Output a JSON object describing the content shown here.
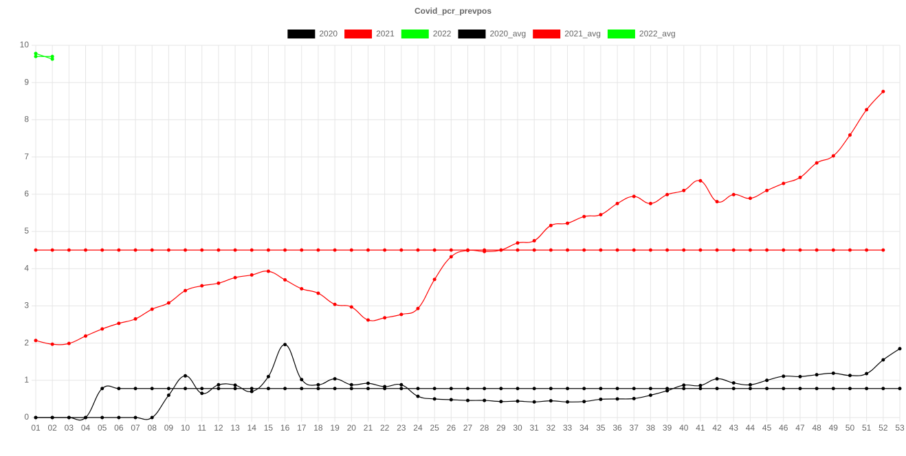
{
  "chart_data": {
    "type": "line",
    "title": "Covid_pcr_prevpos",
    "categories": [
      "01",
      "02",
      "03",
      "04",
      "05",
      "06",
      "07",
      "08",
      "09",
      "10",
      "11",
      "12",
      "13",
      "14",
      "15",
      "16",
      "17",
      "18",
      "19",
      "20",
      "21",
      "22",
      "23",
      "24",
      "25",
      "26",
      "27",
      "28",
      "29",
      "30",
      "31",
      "32",
      "33",
      "34",
      "35",
      "36",
      "37",
      "38",
      "39",
      "40",
      "41",
      "42",
      "43",
      "44",
      "45",
      "46",
      "47",
      "48",
      "49",
      "50",
      "51",
      "52",
      "53"
    ],
    "series": [
      {
        "name": "2020",
        "color": "#000000",
        "values": [
          0,
          0,
          0,
          0,
          0,
          0,
          0,
          0,
          0.6,
          1.12,
          0.65,
          0.88,
          0.87,
          0.7,
          1.1,
          1.96,
          1.02,
          0.88,
          1.04,
          0.88,
          0.92,
          0.83,
          0.88,
          0.57,
          0.5,
          0.48,
          0.46,
          0.46,
          0.43,
          0.44,
          0.42,
          0.45,
          0.42,
          0.43,
          0.49,
          0.5,
          0.51,
          0.6,
          0.72,
          0.87,
          0.86,
          1.04,
          0.93,
          0.88,
          1.0,
          1.11,
          1.1,
          1.15,
          1.19,
          1.13,
          1.18,
          1.55,
          1.85
        ]
      },
      {
        "name": "2021",
        "color": "#ff0000",
        "values": [
          2.07,
          1.97,
          1.99,
          2.19,
          2.38,
          2.53,
          2.65,
          2.91,
          3.08,
          3.41,
          3.54,
          3.61,
          3.76,
          3.83,
          3.93,
          3.7,
          3.46,
          3.34,
          3.04,
          2.97,
          2.62,
          2.68,
          2.77,
          2.93,
          3.71,
          4.32,
          4.49,
          4.46,
          4.5,
          4.69,
          4.75,
          5.16,
          5.22,
          5.4,
          5.45,
          5.75,
          5.94,
          5.75,
          5.99,
          6.1,
          6.36,
          5.8,
          5.99,
          5.89,
          6.1,
          6.29,
          6.45,
          6.84,
          7.03,
          7.59,
          8.27,
          8.76,
          null
        ]
      },
      {
        "name": "2022",
        "color": "#00ff00",
        "values": [
          9.78,
          9.63,
          null,
          null,
          null,
          null,
          null,
          null,
          null,
          null,
          null,
          null,
          null,
          null,
          null,
          null,
          null,
          null,
          null,
          null,
          null,
          null,
          null,
          null,
          null,
          null,
          null,
          null,
          null,
          null,
          null,
          null,
          null,
          null,
          null,
          null,
          null,
          null,
          null,
          null,
          null,
          null,
          null,
          null,
          null,
          null,
          null,
          null,
          null,
          null,
          null,
          null,
          null
        ]
      },
      {
        "name": "2020_avg",
        "color": "#000000",
        "values": [
          0,
          0,
          0,
          0,
          0.78,
          0.78,
          0.78,
          0.78,
          0.78,
          0.78,
          0.78,
          0.78,
          0.78,
          0.78,
          0.78,
          0.78,
          0.78,
          0.78,
          0.78,
          0.78,
          0.78,
          0.78,
          0.78,
          0.78,
          0.78,
          0.78,
          0.78,
          0.78,
          0.78,
          0.78,
          0.78,
          0.78,
          0.78,
          0.78,
          0.78,
          0.78,
          0.78,
          0.78,
          0.78,
          0.78,
          0.78,
          0.78,
          0.78,
          0.78,
          0.78,
          0.78,
          0.78,
          0.78,
          0.78,
          0.78,
          0.78,
          0.78,
          0.78
        ]
      },
      {
        "name": "2021_avg",
        "color": "#ff0000",
        "values": [
          4.5,
          4.5,
          4.5,
          4.5,
          4.5,
          4.5,
          4.5,
          4.5,
          4.5,
          4.5,
          4.5,
          4.5,
          4.5,
          4.5,
          4.5,
          4.5,
          4.5,
          4.5,
          4.5,
          4.5,
          4.5,
          4.5,
          4.5,
          4.5,
          4.5,
          4.5,
          4.5,
          4.5,
          4.5,
          4.5,
          4.5,
          4.5,
          4.5,
          4.5,
          4.5,
          4.5,
          4.5,
          4.5,
          4.5,
          4.5,
          4.5,
          4.5,
          4.5,
          4.5,
          4.5,
          4.5,
          4.5,
          4.5,
          4.5,
          4.5,
          4.5,
          4.5,
          null
        ]
      },
      {
        "name": "2022_avg",
        "color": "#00ff00",
        "values": [
          9.7,
          9.7,
          null,
          null,
          null,
          null,
          null,
          null,
          null,
          null,
          null,
          null,
          null,
          null,
          null,
          null,
          null,
          null,
          null,
          null,
          null,
          null,
          null,
          null,
          null,
          null,
          null,
          null,
          null,
          null,
          null,
          null,
          null,
          null,
          null,
          null,
          null,
          null,
          null,
          null,
          null,
          null,
          null,
          null,
          null,
          null,
          null,
          null,
          null,
          null,
          null,
          null,
          null
        ]
      }
    ],
    "ylim": [
      0,
      10
    ],
    "yticks": [
      0,
      1,
      2,
      3,
      4,
      5,
      6,
      7,
      8,
      9,
      10
    ],
    "grid": true,
    "legend": "top"
  }
}
